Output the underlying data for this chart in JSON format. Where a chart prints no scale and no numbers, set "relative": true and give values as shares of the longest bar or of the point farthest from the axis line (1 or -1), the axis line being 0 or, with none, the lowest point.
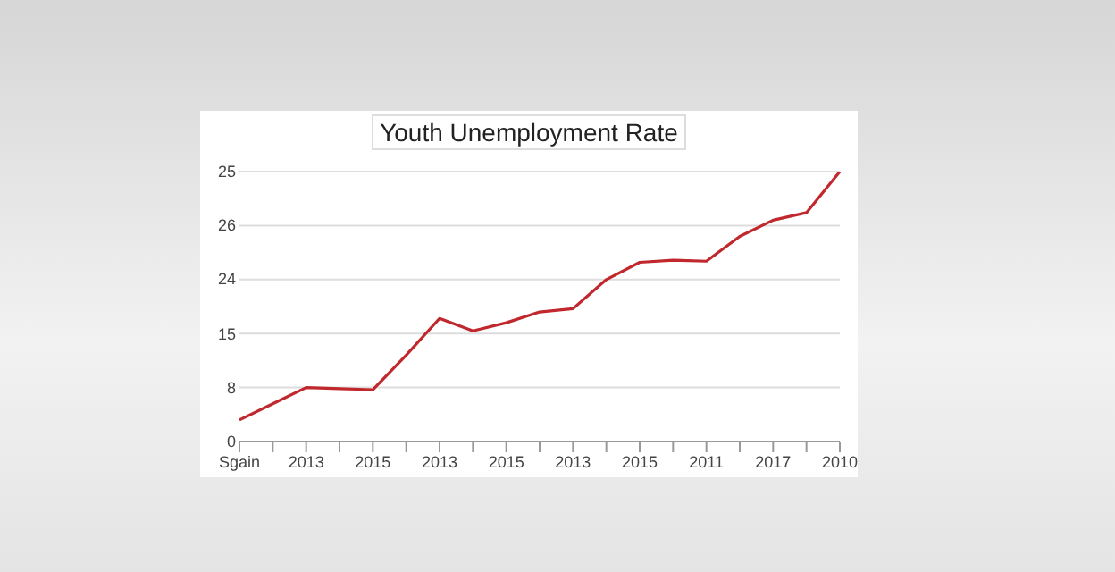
{
  "chart_data": {
    "type": "line",
    "title": "Youth Unemployment Rate",
    "relative": true,
    "categories": [
      "Sgain",
      null,
      "2013",
      null,
      "2015",
      null,
      "2013",
      null,
      "2015",
      null,
      "2013",
      null,
      "2015",
      null,
      "2011",
      null,
      "2017",
      null,
      "2010"
    ],
    "series": [
      {
        "color": "#c0282d",
        "values": [
          0.08,
          0.14,
          0.2,
          0.196,
          0.192,
          0.32,
          0.456,
          0.41,
          0.44,
          0.48,
          0.492,
          0.6,
          0.664,
          0.672,
          0.668,
          0.76,
          0.82,
          0.848,
          1
        ]
      }
    ],
    "annotations": [
      "25",
      "26",
      "24",
      "15",
      "8",
      "0"
    ],
    "grid": "y",
    "marker": "none",
    "line_style": "solid"
  }
}
